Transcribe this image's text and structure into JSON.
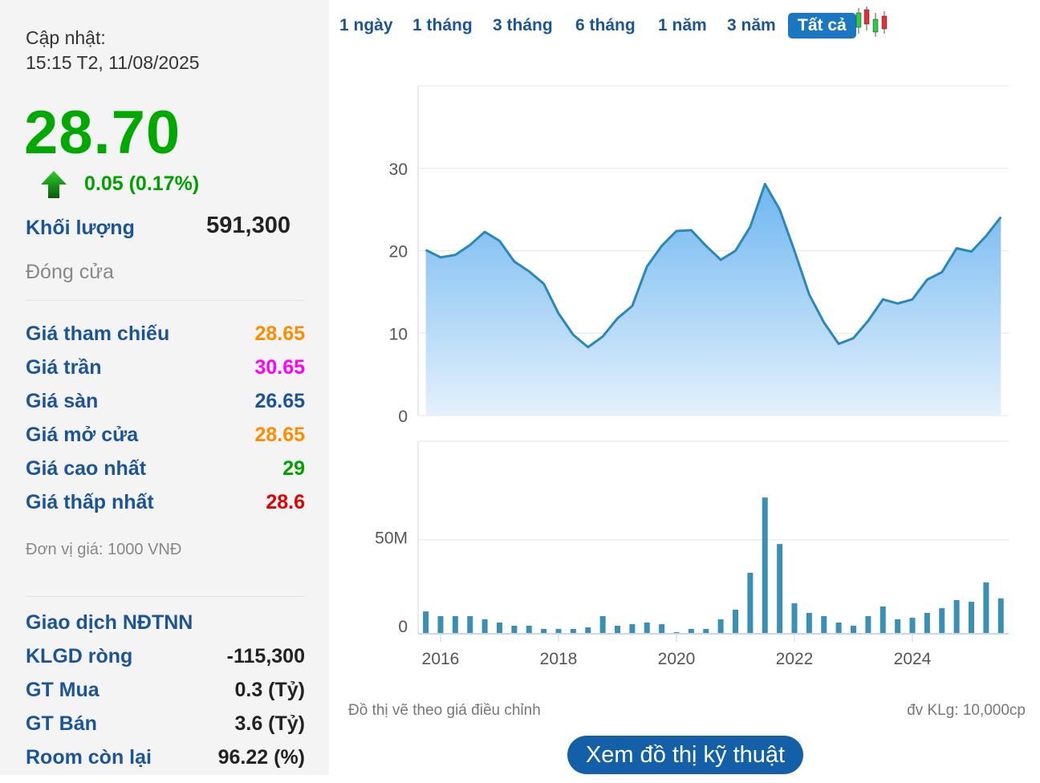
{
  "summary": {
    "update_label": "Cập nhật:",
    "update_time": "15:15 T2, 11/08/2025",
    "price": "28.70",
    "change": "0.05 (0.17%)",
    "change_direction": "up-arrow-icon",
    "volume_label": "Khối lượng",
    "volume": "591,300",
    "status": "Đóng cửa"
  },
  "prices": [
    {
      "label": "Giá tham chiếu",
      "value": "28.65",
      "color": "#ff8c00"
    },
    {
      "label": "Giá trần",
      "value": "30.65",
      "color": "#ff00ff"
    },
    {
      "label": "Giá sàn",
      "value": "26.65",
      "color": "#1c5596"
    },
    {
      "label": "Giá mở cửa",
      "value": "28.65",
      "color": "#ff8c00"
    },
    {
      "label": "Giá cao nhất",
      "value": "29",
      "color": "#00a000"
    },
    {
      "label": "Giá thấp nhất",
      "value": "28.6",
      "color": "#e00000"
    }
  ],
  "unit_note": "Đơn vị giá: 1000 VNĐ",
  "foreign": {
    "title": "Giao dịch NĐTNN",
    "rows": [
      {
        "label": "KLGD ròng",
        "value": "-115,300"
      },
      {
        "label": "GT Mua",
        "value": "0.3 (Tỷ)"
      },
      {
        "label": "GT Bán",
        "value": "3.6 (Tỷ)"
      },
      {
        "label": "Room còn lại",
        "value": "96.22 (%)"
      }
    ]
  },
  "tabs": [
    "1 ngày",
    "1 tháng",
    "3 tháng",
    "6 tháng",
    "1 năm",
    "3 năm",
    "Tất cả"
  ],
  "active_tab": "Tất cả",
  "chart_note_left": "Đồ thị vẽ theo giá điều chỉnh",
  "chart_note_right": "đv KLg: 10,000cp",
  "tech_button": "Xem đồ thị kỹ thuật",
  "chart_data": [
    {
      "type": "area",
      "x": [
        "2015-Q4",
        "2016-Q1",
        "2016-Q2",
        "2016-Q3",
        "2016-Q4",
        "2017-Q1",
        "2017-Q2",
        "2017-Q3",
        "2017-Q4",
        "2018-Q1",
        "2018-Q2",
        "2018-Q3",
        "2018-Q4",
        "2019-Q1",
        "2019-Q2",
        "2019-Q3",
        "2019-Q4",
        "2020-Q1",
        "2020-Q2",
        "2020-Q3",
        "2020-Q4",
        "2021-Q1",
        "2021-Q2",
        "2021-Q3",
        "2021-Q4",
        "2022-Q1",
        "2022-Q2",
        "2022-Q3",
        "2022-Q4",
        "2023-Q1",
        "2023-Q2",
        "2023-Q3",
        "2023-Q4",
        "2024-Q1",
        "2024-Q2",
        "2024-Q3",
        "2024-Q4",
        "2025-Q1",
        "2025-Q2",
        "2025-Q3"
      ],
      "values": [
        20.1,
        19.2,
        19.5,
        20.7,
        22.3,
        21.2,
        18.7,
        17.5,
        16,
        12.4,
        9.8,
        8.3,
        9.6,
        11.8,
        13.3,
        18.1,
        20.6,
        22.4,
        22.5,
        20.6,
        18.9,
        20,
        22.9,
        28.1,
        25,
        20,
        14.7,
        11.3,
        8.7,
        9.4,
        11.5,
        14.1,
        13.6,
        14.1,
        16.5,
        17.4,
        20.3,
        19.9,
        21.8,
        24.1
      ],
      "yticks": [
        "0",
        "10",
        "20",
        "30"
      ],
      "ylim": [
        0,
        40
      ],
      "grid": true,
      "color": "#2a88b8"
    },
    {
      "type": "bar",
      "values": [
        11.9,
        9.4,
        9.4,
        9.4,
        7.7,
        6,
        4.3,
        4.3,
        2.6,
        2.6,
        2.6,
        3.4,
        9.4,
        4.3,
        5.1,
        6,
        5.1,
        0.9,
        2.6,
        2.6,
        7.7,
        12.8,
        32.4,
        72.4,
        47.7,
        16.2,
        11.1,
        9.4,
        6,
        4.3,
        9.4,
        14.5,
        7.7,
        8.5,
        11.1,
        13.6,
        17.9,
        17,
        27.3,
        18.8
      ],
      "unit": "M",
      "yticks": [
        "0",
        "50M"
      ],
      "xticks": [
        "2016",
        "2018",
        "2020",
        "2022",
        "2024"
      ],
      "grid": true,
      "color": "#3a8fb5"
    }
  ]
}
